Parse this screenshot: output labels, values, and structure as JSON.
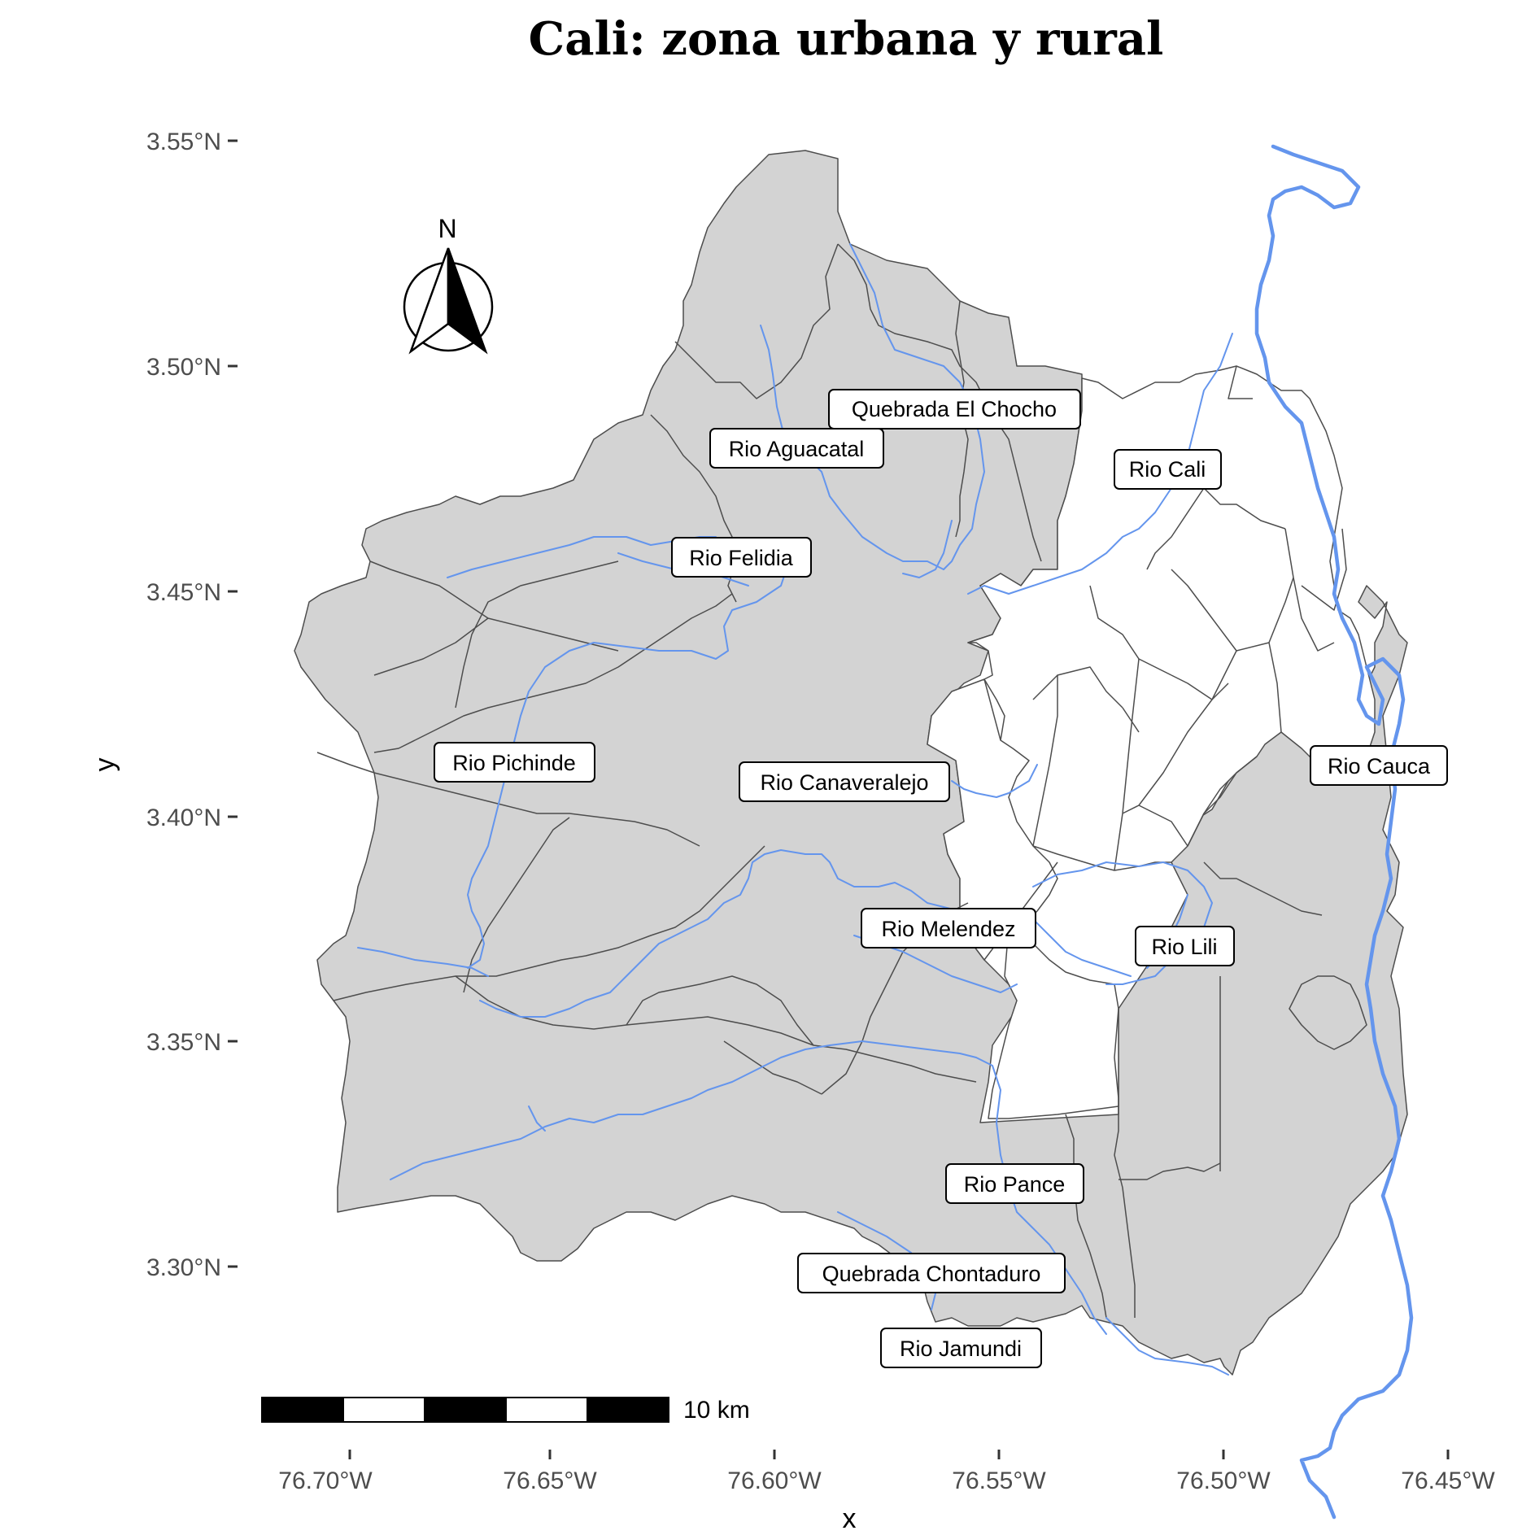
{
  "title": "Cali: zona urbana y rural",
  "x_axis": {
    "title": "x",
    "ticks": [
      "76.70°W",
      "76.65°W",
      "76.60°W",
      "76.55°W",
      "76.50°W",
      "76.45°W"
    ]
  },
  "y_axis": {
    "title": "y",
    "ticks": [
      "3.55°N",
      "3.50°N",
      "3.45°N",
      "3.40°N",
      "3.35°N",
      "3.30°N"
    ]
  },
  "north_arrow": {
    "label": "N"
  },
  "scale_bar": {
    "label": "10 km"
  },
  "colors": {
    "rural_fill": "#d3d3d3",
    "urban_fill": "#ffffff",
    "boundary": "#4d4d4d",
    "river": "#6495ed"
  },
  "rivers": [
    {
      "name": "Quebrada El Chocho"
    },
    {
      "name": "Rio Aguacatal"
    },
    {
      "name": "Rio Cali"
    },
    {
      "name": "Rio Felidia"
    },
    {
      "name": "Rio Pichinde"
    },
    {
      "name": "Rio Canaveralejo"
    },
    {
      "name": "Rio Cauca"
    },
    {
      "name": "Rio Melendez"
    },
    {
      "name": "Rio Lili"
    },
    {
      "name": "Rio Pance"
    },
    {
      "name": "Quebrada Chontaduro"
    },
    {
      "name": "Rio Jamundi"
    }
  ]
}
